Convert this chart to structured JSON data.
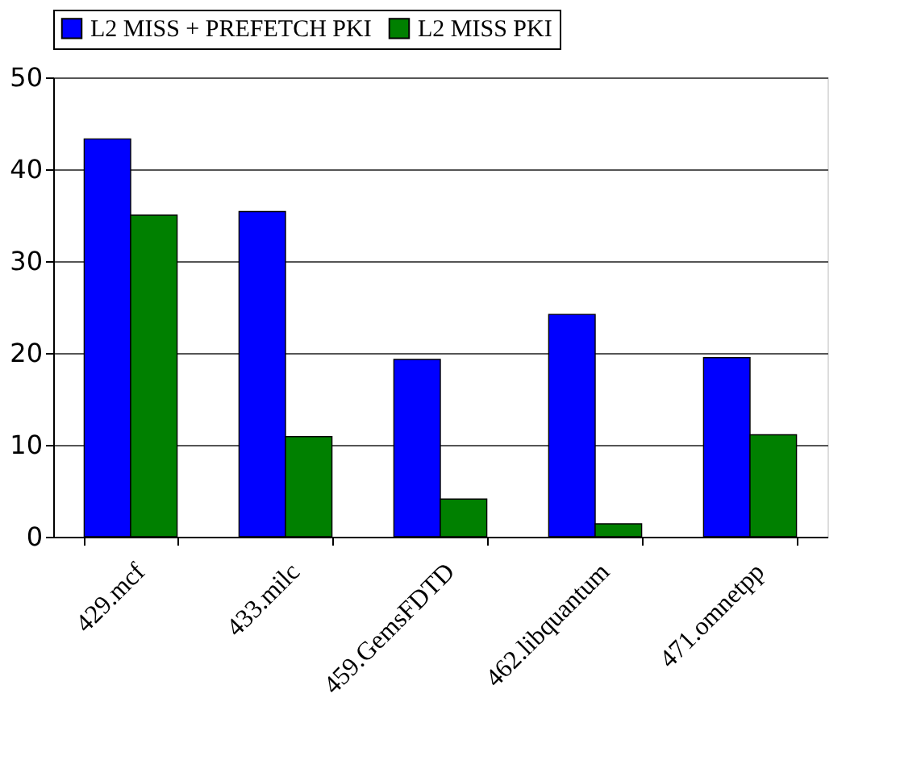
{
  "chart_data": {
    "type": "bar",
    "categories": [
      "429.mcf",
      "433.milc",
      "459.GemsFDTD",
      "462.libquantum",
      "471.omnetpp"
    ],
    "series": [
      {
        "name": "L2 MISS + PREFETCH PKI",
        "color": "#0000ff",
        "values": [
          43.3,
          35.4,
          19.3,
          24.2,
          19.5
        ]
      },
      {
        "name": "L2 MISS PKI",
        "color": "#008000",
        "values": [
          35,
          10.9,
          4.1,
          1.4,
          11.1
        ]
      }
    ],
    "ylim": [
      0,
      50
    ],
    "yticks": [
      0,
      10,
      20,
      30,
      40,
      50
    ],
    "grid": "y",
    "legend": "top"
  }
}
